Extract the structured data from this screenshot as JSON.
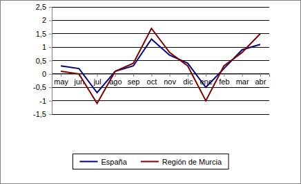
{
  "chart_data": {
    "type": "line",
    "categories": [
      "may",
      "jun",
      "jul",
      "ago",
      "sep",
      "oct",
      "nov",
      "dic",
      "ene",
      "feb",
      "mar",
      "abr"
    ],
    "series": [
      {
        "name": "España",
        "color": "#000080",
        "values": [
          0.3,
          0.2,
          -0.7,
          0.1,
          0.3,
          1.3,
          0.7,
          0.4,
          -0.5,
          0.2,
          0.9,
          1.1
        ]
      },
      {
        "name": "Región de Murcia",
        "color": "#800000",
        "values": [
          0.1,
          0.0,
          -1.1,
          0.1,
          0.4,
          1.7,
          0.8,
          0.3,
          -1.0,
          0.3,
          0.8,
          1.5
        ]
      }
    ],
    "ylim": [
      -1.5,
      2.5
    ],
    "yticks": [
      {
        "value": -1.5,
        "label": "-1,5"
      },
      -1,
      {
        "value": -0.5,
        "label": "-0,5"
      },
      0,
      {
        "value": 0.5,
        "label": "0,5"
      },
      1,
      {
        "value": 1.5,
        "label": "1,5"
      },
      2,
      {
        "value": 2.5,
        "label": "2,5"
      }
    ],
    "grid": true,
    "legend": "bottom"
  }
}
